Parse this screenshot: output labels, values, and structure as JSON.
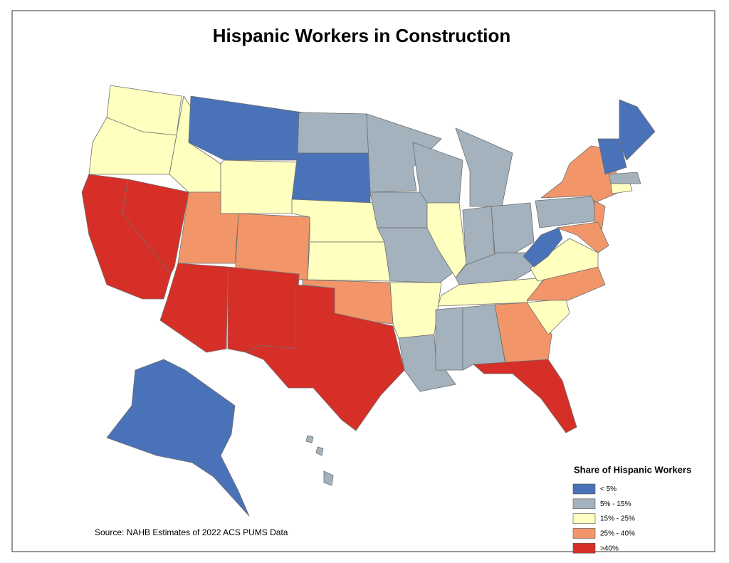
{
  "title": "Hispanic Workers in Construction",
  "legend": {
    "title": "Share of Hispanic Workers",
    "items": [
      {
        "label": "< 5%",
        "color": "#4a72b8"
      },
      {
        "label": "5% - 15%",
        "color": "#a3b2bd"
      },
      {
        "label": "15% - 25%",
        "color": "#ffffbf"
      },
      {
        "label": "25% - 40%",
        "color": "#f2966a"
      },
      {
        "label": ">40%",
        "color": "#d62f27"
      }
    ]
  },
  "source": "Source: NAHB Estimates of 2022 ACS PUMS Data"
}
